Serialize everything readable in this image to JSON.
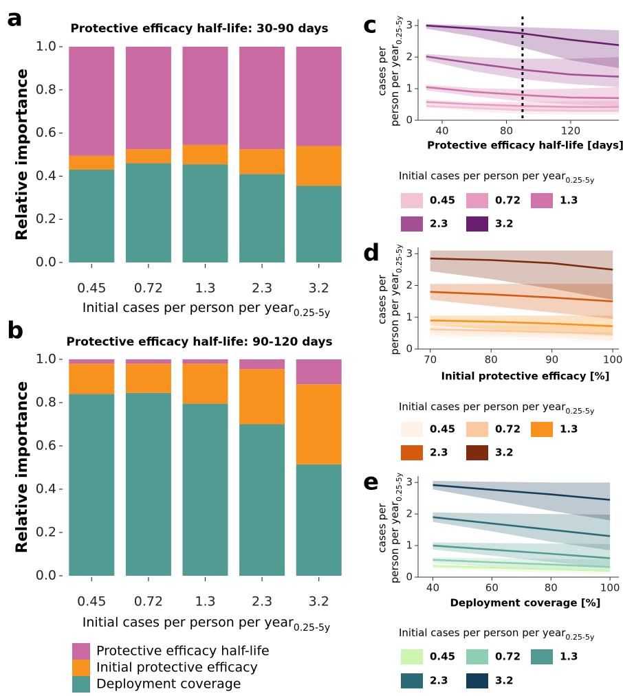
{
  "colors": {
    "half_life": "#c96aa3",
    "initial_efficacy": "#f7921e",
    "deployment": "#519b93"
  },
  "chart_data": [
    {
      "id": "a",
      "type": "bar",
      "stacked": true,
      "panel_letter": "a",
      "title": "Protective efficacy half-life: 30-90 days",
      "xlabel": "Initial cases per person per year",
      "xlabel_sub": "0.25-5y",
      "ylabel": "Relative importance",
      "ylim": [
        0,
        1
      ],
      "yticks": [
        "0.0",
        "0.2",
        "0.4",
        "0.6",
        "0.8",
        "1.0"
      ],
      "categories": [
        "0.45",
        "0.72",
        "1.3",
        "2.3",
        "3.2"
      ],
      "series": [
        {
          "name": "Deployment coverage",
          "color": "#519b93",
          "values": [
            0.43,
            0.46,
            0.455,
            0.41,
            0.355
          ]
        },
        {
          "name": "Initial protective efficacy",
          "color": "#f7921e",
          "values": [
            0.065,
            0.065,
            0.09,
            0.115,
            0.185
          ]
        },
        {
          "name": "Protective efficacy half-life",
          "color": "#c96aa3",
          "values": [
            0.505,
            0.475,
            0.455,
            0.475,
            0.46
          ]
        }
      ]
    },
    {
      "id": "b",
      "type": "bar",
      "stacked": true,
      "panel_letter": "b",
      "title": "Protective efficacy half-life: 90-120 days",
      "xlabel": "Initial cases per person per year",
      "xlabel_sub": "0.25-5y",
      "ylabel": "Relative importance",
      "ylim": [
        0,
        1
      ],
      "yticks": [
        "0.0",
        "0.2",
        "0.4",
        "0.6",
        "0.8",
        "1.0"
      ],
      "categories": [
        "0.45",
        "0.72",
        "1.3",
        "2.3",
        "3.2"
      ],
      "series": [
        {
          "name": "Deployment coverage",
          "color": "#519b93",
          "values": [
            0.84,
            0.845,
            0.795,
            0.7,
            0.515
          ]
        },
        {
          "name": "Initial protective efficacy",
          "color": "#f7921e",
          "values": [
            0.14,
            0.135,
            0.185,
            0.255,
            0.37
          ]
        },
        {
          "name": "Protective efficacy half-life",
          "color": "#c96aa3",
          "values": [
            0.02,
            0.02,
            0.02,
            0.045,
            0.115
          ]
        }
      ]
    },
    {
      "id": "c",
      "type": "line",
      "panel_letter": "c",
      "xlabel": "Protective efficacy half-life [days]",
      "ylabel_lines": [
        "cases per",
        "person per year"
      ],
      "ylabel_sub": "0.25-5y",
      "xlim": [
        25,
        150
      ],
      "ylim": [
        0,
        3.2
      ],
      "xticks": [
        40,
        80,
        120
      ],
      "yticks": [
        0,
        1,
        2,
        3
      ],
      "vline": 90,
      "legend_title": "Initial cases per person per year",
      "legend_title_sub": "0.25-5y",
      "series": [
        {
          "name": "0.45",
          "color": "#f2c3d3",
          "x": [
            30,
            60,
            90,
            120,
            150
          ],
          "y": [
            0.45,
            0.38,
            0.32,
            0.3,
            0.3
          ],
          "lower": [
            0.4,
            0.28,
            0.2,
            0.18,
            0.18
          ],
          "upper": [
            0.5,
            0.45,
            0.42,
            0.42,
            0.42
          ]
        },
        {
          "name": "0.72",
          "color": "#e79ac0",
          "x": [
            30,
            60,
            90,
            120,
            150
          ],
          "y": [
            0.58,
            0.5,
            0.45,
            0.42,
            0.42
          ],
          "lower": [
            0.5,
            0.4,
            0.32,
            0.28,
            0.28
          ],
          "upper": [
            0.65,
            0.58,
            0.58,
            0.6,
            0.62
          ]
        },
        {
          "name": "1.3",
          "color": "#d174aa",
          "x": [
            30,
            60,
            90,
            120,
            150
          ],
          "y": [
            1.05,
            0.9,
            0.8,
            0.72,
            0.7
          ],
          "lower": [
            0.95,
            0.75,
            0.6,
            0.5,
            0.45
          ],
          "upper": [
            1.12,
            1.02,
            0.98,
            1.0,
            1.05
          ]
        },
        {
          "name": "2.3",
          "color": "#a24f94",
          "x": [
            30,
            60,
            90,
            120,
            150
          ],
          "y": [
            2.02,
            1.8,
            1.6,
            1.45,
            1.38
          ],
          "lower": [
            1.9,
            1.55,
            1.3,
            1.15,
            1.05
          ],
          "upper": [
            2.1,
            2.0,
            1.95,
            1.95,
            2.0
          ]
        },
        {
          "name": "3.2",
          "color": "#6a1e70",
          "x": [
            30,
            60,
            90,
            120,
            150
          ],
          "y": [
            3.0,
            2.9,
            2.75,
            2.55,
            2.38
          ],
          "lower": [
            2.9,
            2.65,
            2.3,
            1.9,
            1.65
          ],
          "upper": [
            3.05,
            3.0,
            2.95,
            2.9,
            2.85
          ]
        }
      ]
    },
    {
      "id": "d",
      "type": "line",
      "panel_letter": "d",
      "xlabel": "Initial protective efficacy [%]",
      "ylabel_lines": [
        "cases per",
        "person per year"
      ],
      "ylabel_sub": "0.25-5y",
      "xlim": [
        68,
        101
      ],
      "ylim": [
        0,
        3.2
      ],
      "xticks": [
        70,
        80,
        90,
        100
      ],
      "yticks": [
        0,
        1,
        2,
        3
      ],
      "legend_title": "Initial cases per person per year",
      "legend_title_sub": "0.25-5y",
      "series": [
        {
          "name": "0.45",
          "color": "#fdf2e6",
          "x": [
            70,
            80,
            90,
            100
          ],
          "y": [
            0.45,
            0.42,
            0.39,
            0.35
          ],
          "lower": [
            0.35,
            0.28,
            0.22,
            0.18
          ],
          "upper": [
            0.55,
            0.55,
            0.55,
            0.55
          ]
        },
        {
          "name": "0.72",
          "color": "#fbc9a0",
          "x": [
            70,
            80,
            90,
            100
          ],
          "y": [
            0.62,
            0.58,
            0.53,
            0.48
          ],
          "lower": [
            0.5,
            0.42,
            0.35,
            0.28
          ],
          "upper": [
            0.75,
            0.75,
            0.75,
            0.75
          ]
        },
        {
          "name": "1.3",
          "color": "#f7921e",
          "x": [
            70,
            80,
            90,
            100
          ],
          "y": [
            0.9,
            0.86,
            0.8,
            0.72
          ],
          "lower": [
            0.75,
            0.62,
            0.52,
            0.42
          ],
          "upper": [
            1.05,
            1.05,
            1.05,
            1.05
          ]
        },
        {
          "name": "2.3",
          "color": "#d35a0f",
          "x": [
            70,
            80,
            90,
            100
          ],
          "y": [
            1.8,
            1.72,
            1.62,
            1.5
          ],
          "lower": [
            1.55,
            1.35,
            1.15,
            0.95
          ],
          "upper": [
            2.05,
            2.05,
            2.05,
            2.05
          ]
        },
        {
          "name": "3.2",
          "color": "#7e2b0f",
          "x": [
            70,
            80,
            90,
            100
          ],
          "y": [
            2.85,
            2.8,
            2.7,
            2.5
          ],
          "lower": [
            2.45,
            2.2,
            1.9,
            1.55
          ],
          "upper": [
            3.1,
            3.1,
            3.1,
            3.1
          ]
        }
      ]
    },
    {
      "id": "e",
      "type": "line",
      "panel_letter": "e",
      "xlabel": "Deployment coverage [%]",
      "ylabel_lines": [
        "cases per",
        "person per year"
      ],
      "ylabel_sub": "0.25-5y",
      "xlim": [
        35,
        103
      ],
      "ylim": [
        0,
        3.2
      ],
      "xticks": [
        40,
        60,
        80,
        100
      ],
      "yticks": [
        0,
        1,
        2,
        3
      ],
      "legend_title": "Initial cases per person per year",
      "legend_title_sub": "0.25-5y",
      "series": [
        {
          "name": "0.45",
          "color": "#ccf5b0",
          "x": [
            40,
            60,
            80,
            100
          ],
          "y": [
            0.35,
            0.3,
            0.25,
            0.2
          ],
          "lower": [
            0.28,
            0.2,
            0.14,
            0.1
          ],
          "upper": [
            0.42,
            0.4,
            0.38,
            0.36
          ]
        },
        {
          "name": "0.72",
          "color": "#8ecfb2",
          "x": [
            40,
            60,
            80,
            100
          ],
          "y": [
            0.55,
            0.47,
            0.4,
            0.32
          ],
          "lower": [
            0.45,
            0.33,
            0.24,
            0.17
          ],
          "upper": [
            0.62,
            0.6,
            0.58,
            0.56
          ]
        },
        {
          "name": "1.3",
          "color": "#519b93",
          "x": [
            40,
            60,
            80,
            100
          ],
          "y": [
            1.0,
            0.87,
            0.74,
            0.6
          ],
          "lower": [
            0.88,
            0.68,
            0.48,
            0.3
          ],
          "upper": [
            1.1,
            1.08,
            1.06,
            1.05
          ]
        },
        {
          "name": "2.3",
          "color": "#2d6a78",
          "x": [
            40,
            60,
            80,
            100
          ],
          "y": [
            1.9,
            1.7,
            1.5,
            1.3
          ],
          "lower": [
            1.75,
            1.45,
            1.12,
            0.85
          ],
          "upper": [
            2.05,
            2.02,
            2.0,
            1.98
          ]
        },
        {
          "name": "3.2",
          "color": "#143d59",
          "x": [
            40,
            60,
            80,
            100
          ],
          "y": [
            2.92,
            2.77,
            2.62,
            2.45
          ],
          "lower": [
            2.78,
            2.45,
            2.1,
            1.8
          ],
          "upper": [
            3.05,
            3.02,
            3.0,
            3.0
          ]
        }
      ]
    }
  ],
  "bottom_legend": [
    {
      "label": "Protective efficacy half-life",
      "color": "#c96aa3"
    },
    {
      "label": "Initial protective efficacy",
      "color": "#f7921e"
    },
    {
      "label": "Deployment coverage",
      "color": "#519b93"
    }
  ]
}
